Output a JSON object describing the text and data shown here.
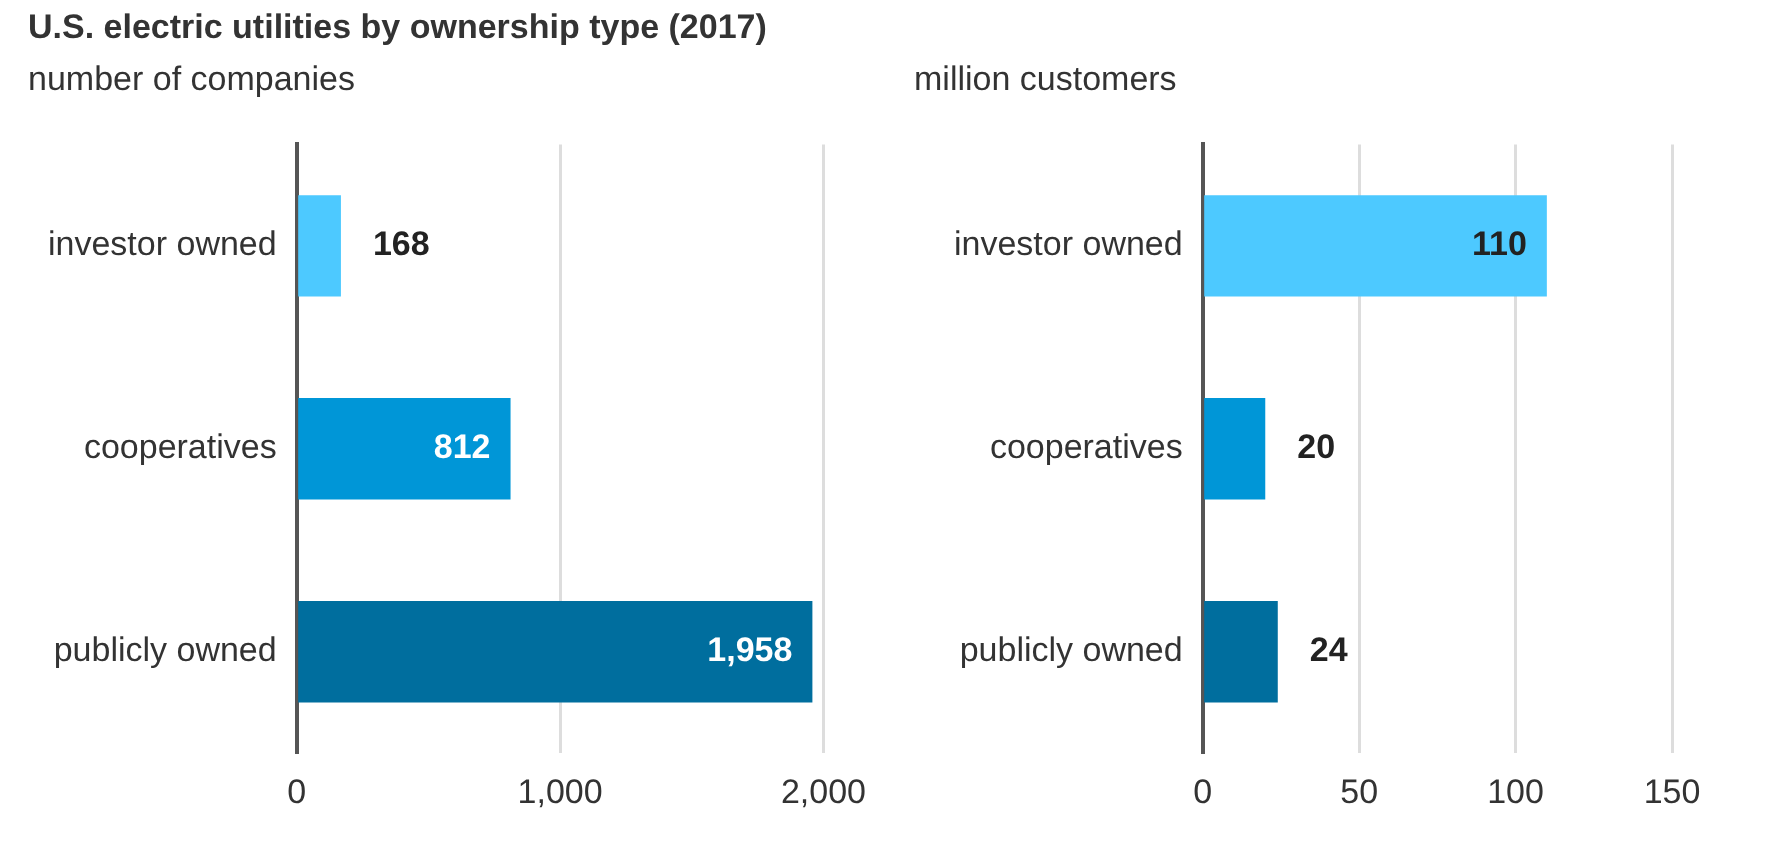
{
  "chart_data": [
    {
      "type": "bar",
      "title": "U.S. electric utilities by ownership type (2017)",
      "subtitle": "number of companies",
      "orientation": "horizontal",
      "categories": [
        "investor owned",
        "cooperatives",
        "publicly owned"
      ],
      "values": [
        168,
        812,
        1958
      ],
      "value_labels": [
        "168",
        "812",
        "1,958"
      ],
      "colors": [
        "#4dc9ff",
        "#0096d7",
        "#006e9e"
      ],
      "xlim": [
        0,
        2000
      ],
      "xticks": [
        0,
        {
          "value": 1000,
          "label": "1,000"
        },
        {
          "value": 2000,
          "label": "2,000"
        }
      ],
      "grid": "x"
    },
    {
      "type": "bar",
      "subtitle": "million customers",
      "orientation": "horizontal",
      "categories": [
        "investor owned",
        "cooperatives",
        "publicly owned"
      ],
      "values": [
        110,
        20,
        24
      ],
      "colors": [
        "#4dc9ff",
        "#0096d7",
        "#006e9e"
      ],
      "xlim": [
        0,
        150
      ],
      "xticks": [
        0,
        50,
        100,
        150
      ],
      "grid": "x",
      "data_labels": true
    }
  ]
}
